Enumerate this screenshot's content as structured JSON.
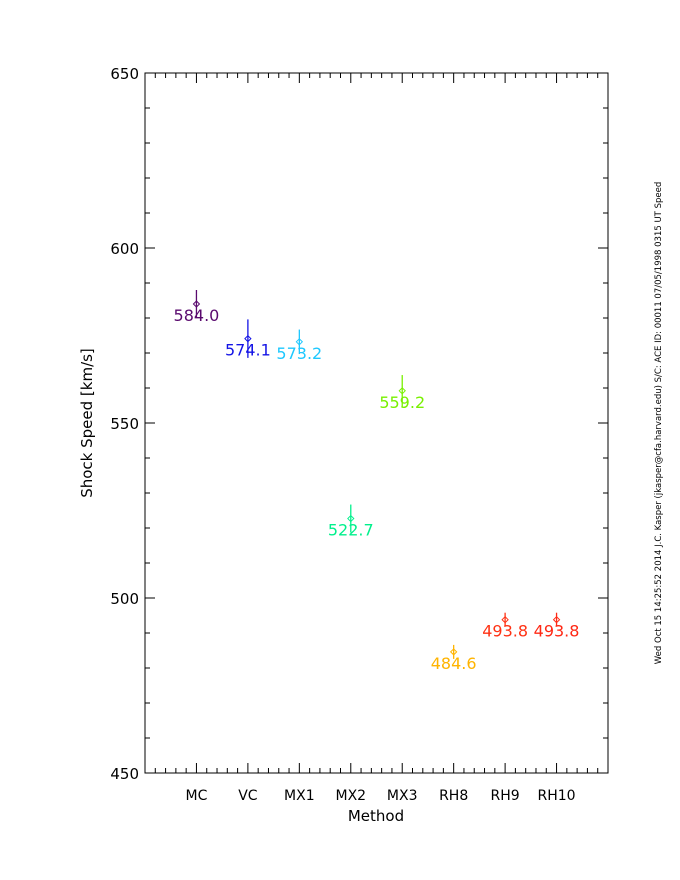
{
  "chart_data": {
    "type": "scatter",
    "title": "",
    "xlabel": "Method",
    "ylabel": "Shock Speed [km/s]",
    "xlim": [
      0,
      9
    ],
    "ylim": [
      450,
      650
    ],
    "yticks": [
      450,
      500,
      550,
      600,
      650
    ],
    "categories": [
      "MC",
      "VC",
      "MX1",
      "MX2",
      "MX3",
      "RH8",
      "RH9",
      "RH10"
    ],
    "values": [
      584.0,
      574.1,
      573.2,
      522.7,
      559.2,
      484.6,
      493.8,
      493.8
    ],
    "value_labels": [
      "584.0",
      "574.1",
      "573.2",
      "522.7",
      "559.2",
      "484.6",
      "493.8",
      "493.8"
    ],
    "errors": [
      4.0,
      5.5,
      3.5,
      4.0,
      4.5,
      2.0,
      2.0,
      2.0
    ],
    "colors": [
      "#5a0a6e",
      "#1414e6",
      "#1ec8ff",
      "#00f08c",
      "#78f000",
      "#ffb400",
      "#ff3214",
      "#ff2814"
    ],
    "grid": false,
    "annotation": "Wed Oct 15 14:25:52 2014   J.C. Kasper (jkasper@cfa.harvard.edu)   S/C: ACE ID: 00011 07/05/1998  0315 UT Speed"
  }
}
